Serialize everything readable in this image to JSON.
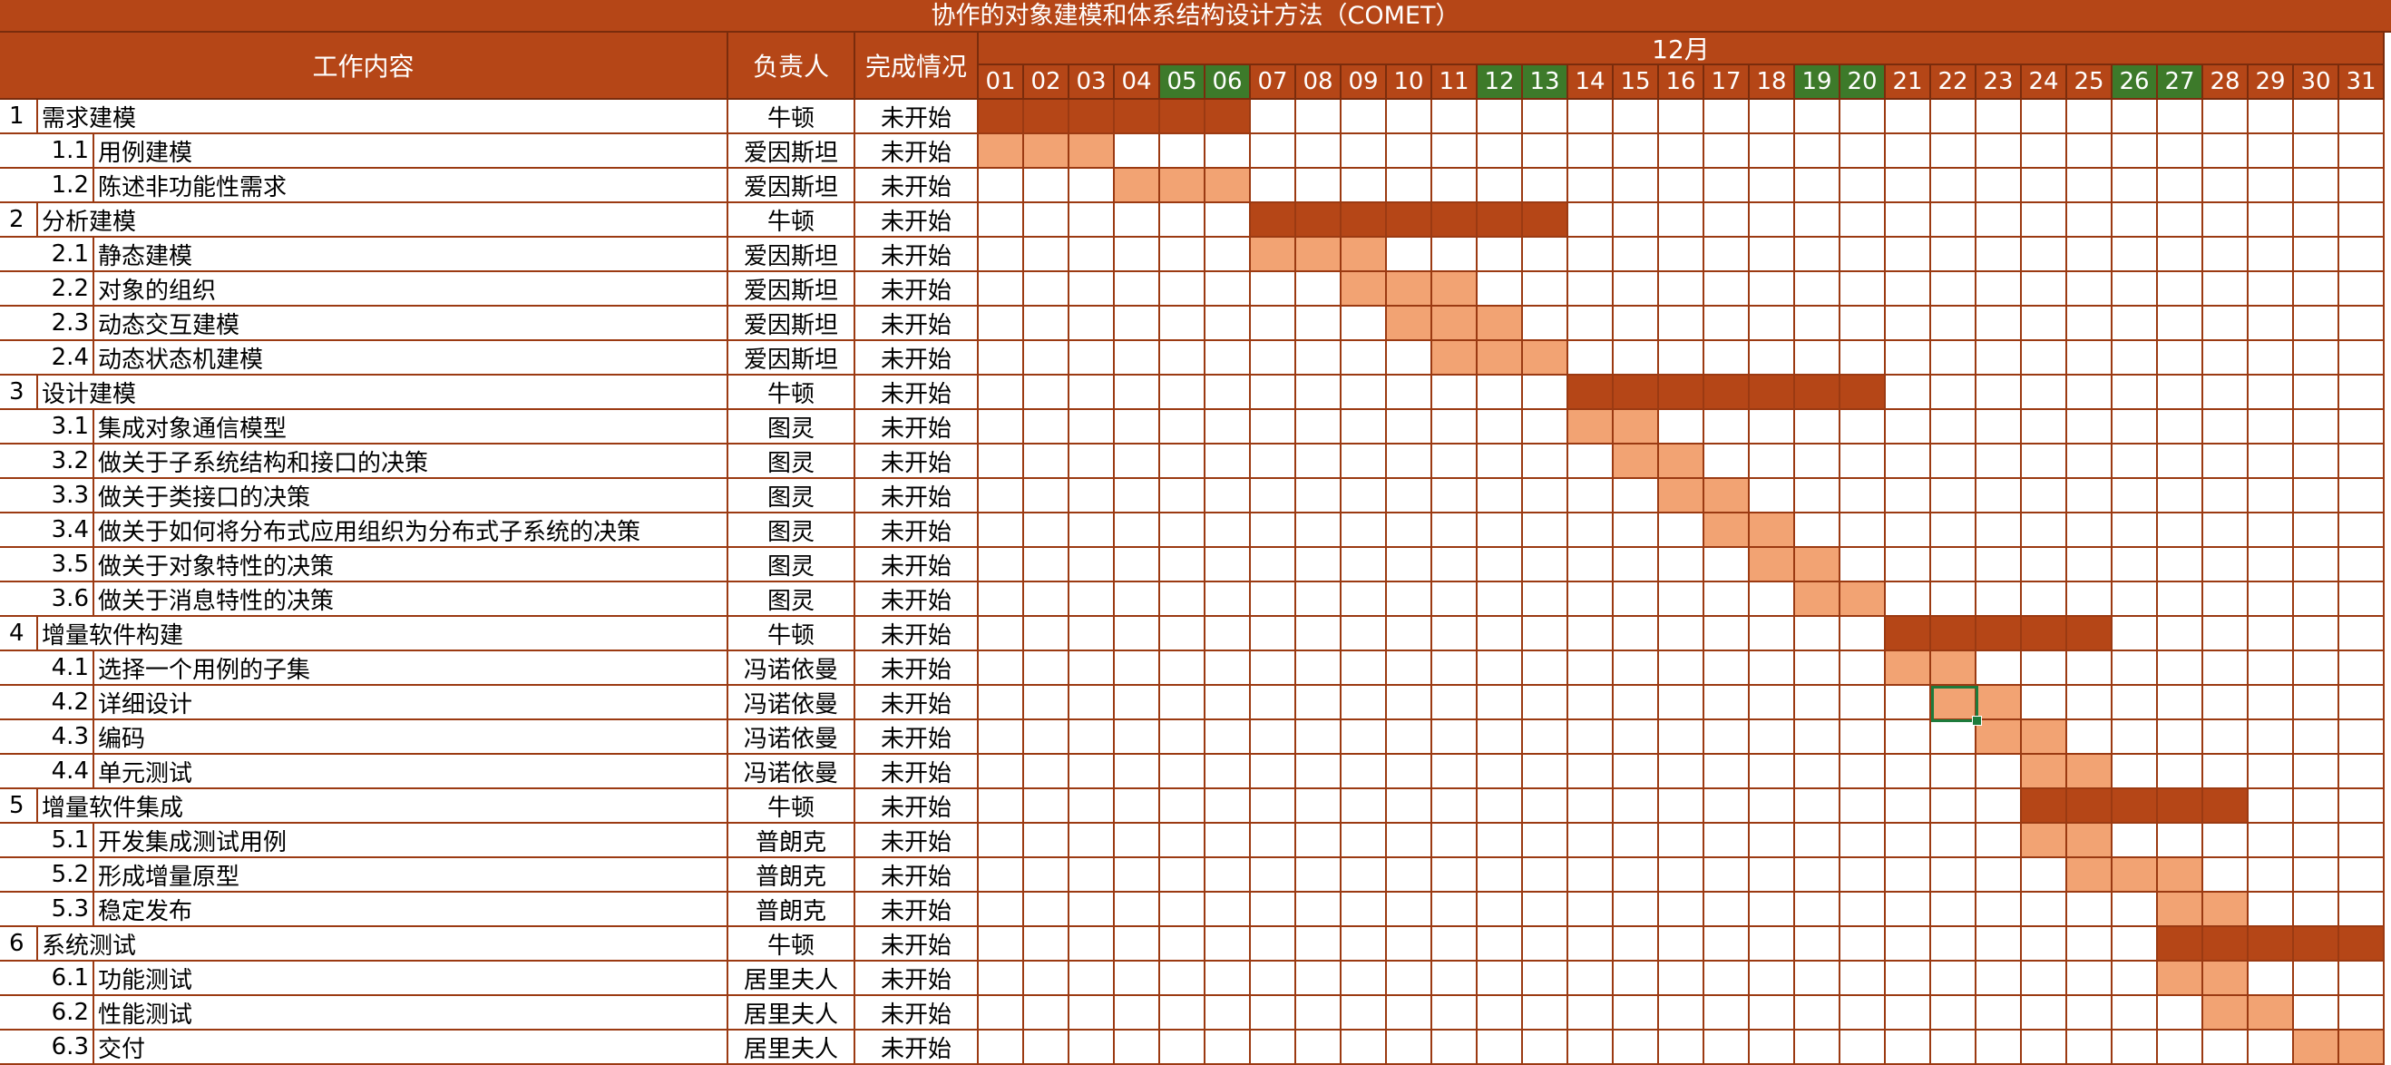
{
  "colors": {
    "header_bg": "#b54617",
    "weekend_bg": "#3d7a2a",
    "phase_bar": "#b54617",
    "task_bar": "#f2a373",
    "grid_line": "#9b3a12"
  },
  "chart_data": {
    "type": "gantt",
    "title": "协作的对象建模和体系结构设计方法（COMET）",
    "columns": {
      "task": "工作内容",
      "owner": "负责人",
      "status": "完成情况"
    },
    "month_label": "12月",
    "days": [
      "01",
      "02",
      "03",
      "04",
      "05",
      "06",
      "07",
      "08",
      "09",
      "10",
      "11",
      "12",
      "13",
      "14",
      "15",
      "16",
      "17",
      "18",
      "19",
      "20",
      "21",
      "22",
      "23",
      "24",
      "25",
      "26",
      "27",
      "28",
      "29",
      "30",
      "31"
    ],
    "weekend_days": [
      "05",
      "06",
      "12",
      "13",
      "19",
      "20",
      "26",
      "27"
    ],
    "tasks": [
      {
        "num": "1",
        "name": "需求建模",
        "owner": "牛顿",
        "status": "未开始",
        "level": 0,
        "start": 1,
        "end": 6
      },
      {
        "num": "1.1",
        "name": "用例建模",
        "owner": "爱因斯坦",
        "status": "未开始",
        "level": 1,
        "start": 1,
        "end": 3
      },
      {
        "num": "1.2",
        "name": "陈述非功能性需求",
        "owner": "爱因斯坦",
        "status": "未开始",
        "level": 1,
        "start": 4,
        "end": 6
      },
      {
        "num": "2",
        "name": "分析建模",
        "owner": "牛顿",
        "status": "未开始",
        "level": 0,
        "start": 7,
        "end": 13
      },
      {
        "num": "2.1",
        "name": "静态建模",
        "owner": "爱因斯坦",
        "status": "未开始",
        "level": 1,
        "start": 7,
        "end": 9
      },
      {
        "num": "2.2",
        "name": "对象的组织",
        "owner": "爱因斯坦",
        "status": "未开始",
        "level": 1,
        "start": 9,
        "end": 11
      },
      {
        "num": "2.3",
        "name": "动态交互建模",
        "owner": "爱因斯坦",
        "status": "未开始",
        "level": 1,
        "start": 10,
        "end": 12
      },
      {
        "num": "2.4",
        "name": "动态状态机建模",
        "owner": "爱因斯坦",
        "status": "未开始",
        "level": 1,
        "start": 11,
        "end": 13
      },
      {
        "num": "3",
        "name": "设计建模",
        "owner": "牛顿",
        "status": "未开始",
        "level": 0,
        "start": 14,
        "end": 20
      },
      {
        "num": "3.1",
        "name": "集成对象通信模型",
        "owner": "图灵",
        "status": "未开始",
        "level": 1,
        "start": 14,
        "end": 15
      },
      {
        "num": "3.2",
        "name": "做关于子系统结构和接口的决策",
        "owner": "图灵",
        "status": "未开始",
        "level": 1,
        "start": 15,
        "end": 16
      },
      {
        "num": "3.3",
        "name": "做关于类接口的决策",
        "owner": "图灵",
        "status": "未开始",
        "level": 1,
        "start": 16,
        "end": 17
      },
      {
        "num": "3.4",
        "name": "做关于如何将分布式应用组织为分布式子系统的决策",
        "owner": "图灵",
        "status": "未开始",
        "level": 1,
        "start": 17,
        "end": 18
      },
      {
        "num": "3.5",
        "name": "做关于对象特性的决策",
        "owner": "图灵",
        "status": "未开始",
        "level": 1,
        "start": 18,
        "end": 19
      },
      {
        "num": "3.6",
        "name": "做关于消息特性的决策",
        "owner": "图灵",
        "status": "未开始",
        "level": 1,
        "start": 19,
        "end": 20
      },
      {
        "num": "4",
        "name": "增量软件构建",
        "owner": "牛顿",
        "status": "未开始",
        "level": 0,
        "start": 21,
        "end": 25
      },
      {
        "num": "4.1",
        "name": "选择一个用例的子集",
        "owner": "冯诺依曼",
        "status": "未开始",
        "level": 1,
        "start": 21,
        "end": 22
      },
      {
        "num": "4.2",
        "name": "详细设计",
        "owner": "冯诺依曼",
        "status": "未开始",
        "level": 1,
        "start": 22,
        "end": 23
      },
      {
        "num": "4.3",
        "name": "编码",
        "owner": "冯诺依曼",
        "status": "未开始",
        "level": 1,
        "start": 23,
        "end": 24
      },
      {
        "num": "4.4",
        "name": "单元测试",
        "owner": "冯诺依曼",
        "status": "未开始",
        "level": 1,
        "start": 24,
        "end": 25
      },
      {
        "num": "5",
        "name": "增量软件集成",
        "owner": "牛顿",
        "status": "未开始",
        "level": 0,
        "start": 24,
        "end": 28
      },
      {
        "num": "5.1",
        "name": "开发集成测试用例",
        "owner": "普朗克",
        "status": "未开始",
        "level": 1,
        "start": 24,
        "end": 25
      },
      {
        "num": "5.2",
        "name": "形成增量原型",
        "owner": "普朗克",
        "status": "未开始",
        "level": 1,
        "start": 25,
        "end": 27
      },
      {
        "num": "5.3",
        "name": "稳定发布",
        "owner": "普朗克",
        "status": "未开始",
        "level": 1,
        "start": 27,
        "end": 28
      },
      {
        "num": "6",
        "name": "系统测试",
        "owner": "牛顿",
        "status": "未开始",
        "level": 0,
        "start": 27,
        "end": 31
      },
      {
        "num": "6.1",
        "name": "功能测试",
        "owner": "居里夫人",
        "status": "未开始",
        "level": 1,
        "start": 27,
        "end": 28
      },
      {
        "num": "6.2",
        "name": "性能测试",
        "owner": "居里夫人",
        "status": "未开始",
        "level": 1,
        "start": 28,
        "end": 29
      },
      {
        "num": "6.3",
        "name": "交付",
        "owner": "居里夫人",
        "status": "未开始",
        "level": 1,
        "start": 30,
        "end": 31
      }
    ],
    "selected_cell": {
      "task": "4.2",
      "day": "22"
    }
  }
}
